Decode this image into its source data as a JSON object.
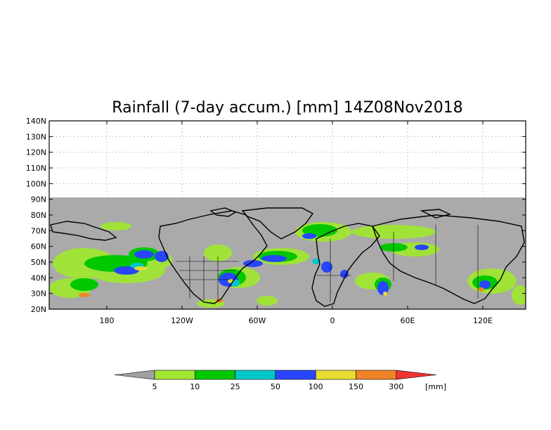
{
  "title": "Rainfall (7-day accum.) [mm] 14Z08Nov2018",
  "lat_labels": [
    "140N",
    "130N",
    "120N",
    "110N",
    "100N",
    "90N",
    "80N",
    "70N",
    "60N",
    "50N",
    "40N",
    "30N",
    "20N"
  ],
  "lon_labels": [
    "180",
    "120W",
    "60W",
    "0",
    "60E",
    "120E"
  ],
  "legend": {
    "thresholds": [
      "5",
      "10",
      "25",
      "50",
      "100",
      "150",
      "300"
    ],
    "unit": "[mm]",
    "colors": [
      "#a0a0a0",
      "#a0e632",
      "#00c800",
      "#00c8c8",
      "#2846ff",
      "#e6dc32",
      "#f08228",
      "#f03232"
    ]
  },
  "colors": {
    "nodata": "#aaaaaa",
    "frame": "#000000",
    "grid": "#888888"
  }
}
